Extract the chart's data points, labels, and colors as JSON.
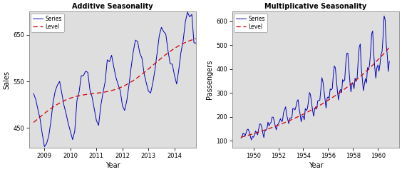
{
  "left_title": "Additive Seasonality",
  "right_title": "Multiplicative Seasonality",
  "left_xlabel": "Year",
  "right_xlabel": "Year",
  "left_ylabel": "Sales",
  "right_ylabel": "Passengers",
  "series_color": "#0000BB",
  "level_color": "#CC0000",
  "bg_color": "#DEDEDE",
  "outer_bg": "#FFFFFF",
  "left_xlim": [
    2008.42,
    2014.83
  ],
  "left_ylim": [
    408,
    700
  ],
  "left_yticks": [
    450,
    550,
    650
  ],
  "left_xticks": [
    2009,
    2010,
    2011,
    2012,
    2013,
    2014
  ],
  "right_xlim": [
    1948.3,
    1961.7
  ],
  "right_ylim": [
    72,
    640
  ],
  "right_yticks": [
    100,
    200,
    300,
    400,
    500,
    600
  ],
  "right_xticks": [
    1950,
    1952,
    1954,
    1956,
    1958,
    1960
  ],
  "airpassengers": [
    112,
    118,
    132,
    129,
    121,
    135,
    148,
    148,
    136,
    119,
    104,
    118,
    115,
    126,
    141,
    135,
    125,
    149,
    170,
    170,
    158,
    133,
    114,
    140,
    145,
    150,
    178,
    163,
    172,
    178,
    199,
    199,
    184,
    162,
    146,
    166,
    171,
    180,
    193,
    181,
    183,
    218,
    230,
    242,
    209,
    191,
    172,
    194,
    196,
    196,
    236,
    235,
    229,
    243,
    264,
    272,
    237,
    211,
    180,
    201,
    204,
    188,
    235,
    227,
    234,
    264,
    302,
    293,
    259,
    229,
    203,
    229,
    242,
    233,
    267,
    269,
    270,
    315,
    364,
    347,
    312,
    274,
    237,
    278,
    284,
    277,
    317,
    313,
    318,
    374,
    413,
    405,
    355,
    306,
    271,
    306,
    315,
    301,
    356,
    348,
    355,
    422,
    465,
    467,
    404,
    347,
    305,
    336,
    340,
    318,
    362,
    348,
    363,
    435,
    491,
    505,
    404,
    359,
    310,
    337,
    360,
    342,
    406,
    396,
    420,
    472,
    548,
    559,
    463,
    407,
    362,
    405,
    417,
    391,
    419,
    461,
    472,
    535,
    622,
    606,
    508,
    461,
    390,
    432
  ]
}
